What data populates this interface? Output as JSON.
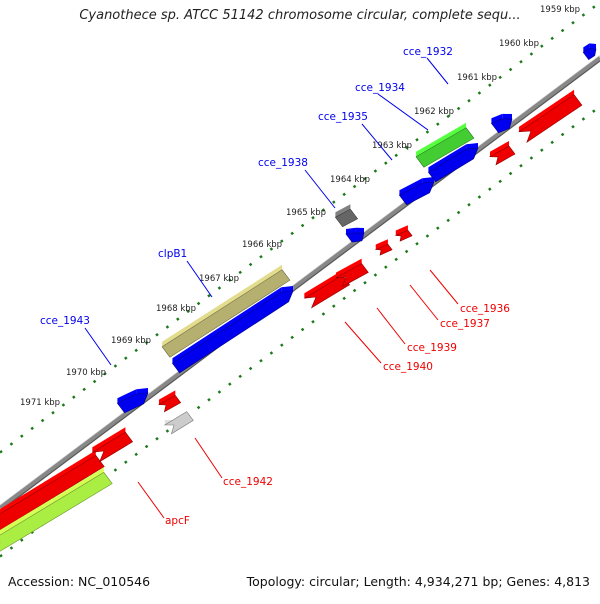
{
  "title": "Cyanothece sp. ATCC 51142 chromosome circular, complete sequ...",
  "footer": {
    "accession": "Accession: NC_010546",
    "topology": "Topology: circular; Length: 4,934,271 bp; Genes: 4,813"
  },
  "ticks": [
    "1959 kbp",
    "1960 kbp",
    "1961 kbp",
    "1962 kbp",
    "1963 kbp",
    "1964 kbp",
    "1965 kbp",
    "1966 kbp",
    "1967 kbp",
    "1968 kbp",
    "1969 kbp",
    "1970 kbp",
    "1971 kbp"
  ],
  "colors": {
    "forward": "#0000ee",
    "reverse": "#ee0000",
    "backbone": "#888888",
    "tick": "#1a7a1a",
    "green": "#44cc33",
    "olive": "#b5b070",
    "lime": "#aaee44",
    "gray_dark": "#666666",
    "gray_light": "#cccccc"
  },
  "labels": {
    "forward": [
      "cce_1932",
      "cce_1934",
      "cce_1935",
      "cce_1938",
      "clpB1",
      "cce_1943"
    ],
    "reverse": [
      "cce_1936",
      "cce_1937",
      "cce_1939",
      "cce_1940",
      "cce_1942",
      "apcF"
    ]
  }
}
